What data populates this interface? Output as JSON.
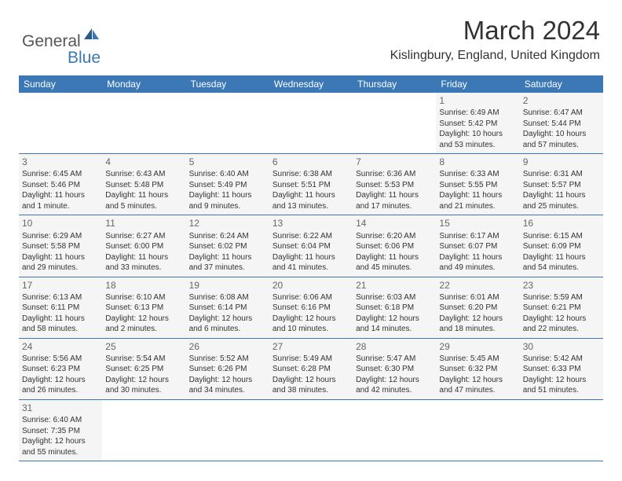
{
  "colors": {
    "header_blue": "#3b78b5",
    "cell_gray": "#f5f5f5",
    "text_main": "#333333",
    "text_muted": "#666666",
    "logo_gray": "#555555"
  },
  "logo": {
    "text_general": "General",
    "text_blue": "Blue"
  },
  "title": "March 2024",
  "location": "Kislingbury, England, United Kingdom",
  "weekdays": [
    "Sunday",
    "Monday",
    "Tuesday",
    "Wednesday",
    "Thursday",
    "Friday",
    "Saturday"
  ],
  "weeks": [
    [
      null,
      null,
      null,
      null,
      null,
      {
        "day": "1",
        "sunrise": "Sunrise: 6:49 AM",
        "sunset": "Sunset: 5:42 PM",
        "daylight": "Daylight: 10 hours and 53 minutes."
      },
      {
        "day": "2",
        "sunrise": "Sunrise: 6:47 AM",
        "sunset": "Sunset: 5:44 PM",
        "daylight": "Daylight: 10 hours and 57 minutes."
      }
    ],
    [
      {
        "day": "3",
        "sunrise": "Sunrise: 6:45 AM",
        "sunset": "Sunset: 5:46 PM",
        "daylight": "Daylight: 11 hours and 1 minute."
      },
      {
        "day": "4",
        "sunrise": "Sunrise: 6:43 AM",
        "sunset": "Sunset: 5:48 PM",
        "daylight": "Daylight: 11 hours and 5 minutes."
      },
      {
        "day": "5",
        "sunrise": "Sunrise: 6:40 AM",
        "sunset": "Sunset: 5:49 PM",
        "daylight": "Daylight: 11 hours and 9 minutes."
      },
      {
        "day": "6",
        "sunrise": "Sunrise: 6:38 AM",
        "sunset": "Sunset: 5:51 PM",
        "daylight": "Daylight: 11 hours and 13 minutes."
      },
      {
        "day": "7",
        "sunrise": "Sunrise: 6:36 AM",
        "sunset": "Sunset: 5:53 PM",
        "daylight": "Daylight: 11 hours and 17 minutes."
      },
      {
        "day": "8",
        "sunrise": "Sunrise: 6:33 AM",
        "sunset": "Sunset: 5:55 PM",
        "daylight": "Daylight: 11 hours and 21 minutes."
      },
      {
        "day": "9",
        "sunrise": "Sunrise: 6:31 AM",
        "sunset": "Sunset: 5:57 PM",
        "daylight": "Daylight: 11 hours and 25 minutes."
      }
    ],
    [
      {
        "day": "10",
        "sunrise": "Sunrise: 6:29 AM",
        "sunset": "Sunset: 5:58 PM",
        "daylight": "Daylight: 11 hours and 29 minutes."
      },
      {
        "day": "11",
        "sunrise": "Sunrise: 6:27 AM",
        "sunset": "Sunset: 6:00 PM",
        "daylight": "Daylight: 11 hours and 33 minutes."
      },
      {
        "day": "12",
        "sunrise": "Sunrise: 6:24 AM",
        "sunset": "Sunset: 6:02 PM",
        "daylight": "Daylight: 11 hours and 37 minutes."
      },
      {
        "day": "13",
        "sunrise": "Sunrise: 6:22 AM",
        "sunset": "Sunset: 6:04 PM",
        "daylight": "Daylight: 11 hours and 41 minutes."
      },
      {
        "day": "14",
        "sunrise": "Sunrise: 6:20 AM",
        "sunset": "Sunset: 6:06 PM",
        "daylight": "Daylight: 11 hours and 45 minutes."
      },
      {
        "day": "15",
        "sunrise": "Sunrise: 6:17 AM",
        "sunset": "Sunset: 6:07 PM",
        "daylight": "Daylight: 11 hours and 49 minutes."
      },
      {
        "day": "16",
        "sunrise": "Sunrise: 6:15 AM",
        "sunset": "Sunset: 6:09 PM",
        "daylight": "Daylight: 11 hours and 54 minutes."
      }
    ],
    [
      {
        "day": "17",
        "sunrise": "Sunrise: 6:13 AM",
        "sunset": "Sunset: 6:11 PM",
        "daylight": "Daylight: 11 hours and 58 minutes."
      },
      {
        "day": "18",
        "sunrise": "Sunrise: 6:10 AM",
        "sunset": "Sunset: 6:13 PM",
        "daylight": "Daylight: 12 hours and 2 minutes."
      },
      {
        "day": "19",
        "sunrise": "Sunrise: 6:08 AM",
        "sunset": "Sunset: 6:14 PM",
        "daylight": "Daylight: 12 hours and 6 minutes."
      },
      {
        "day": "20",
        "sunrise": "Sunrise: 6:06 AM",
        "sunset": "Sunset: 6:16 PM",
        "daylight": "Daylight: 12 hours and 10 minutes."
      },
      {
        "day": "21",
        "sunrise": "Sunrise: 6:03 AM",
        "sunset": "Sunset: 6:18 PM",
        "daylight": "Daylight: 12 hours and 14 minutes."
      },
      {
        "day": "22",
        "sunrise": "Sunrise: 6:01 AM",
        "sunset": "Sunset: 6:20 PM",
        "daylight": "Daylight: 12 hours and 18 minutes."
      },
      {
        "day": "23",
        "sunrise": "Sunrise: 5:59 AM",
        "sunset": "Sunset: 6:21 PM",
        "daylight": "Daylight: 12 hours and 22 minutes."
      }
    ],
    [
      {
        "day": "24",
        "sunrise": "Sunrise: 5:56 AM",
        "sunset": "Sunset: 6:23 PM",
        "daylight": "Daylight: 12 hours and 26 minutes."
      },
      {
        "day": "25",
        "sunrise": "Sunrise: 5:54 AM",
        "sunset": "Sunset: 6:25 PM",
        "daylight": "Daylight: 12 hours and 30 minutes."
      },
      {
        "day": "26",
        "sunrise": "Sunrise: 5:52 AM",
        "sunset": "Sunset: 6:26 PM",
        "daylight": "Daylight: 12 hours and 34 minutes."
      },
      {
        "day": "27",
        "sunrise": "Sunrise: 5:49 AM",
        "sunset": "Sunset: 6:28 PM",
        "daylight": "Daylight: 12 hours and 38 minutes."
      },
      {
        "day": "28",
        "sunrise": "Sunrise: 5:47 AM",
        "sunset": "Sunset: 6:30 PM",
        "daylight": "Daylight: 12 hours and 42 minutes."
      },
      {
        "day": "29",
        "sunrise": "Sunrise: 5:45 AM",
        "sunset": "Sunset: 6:32 PM",
        "daylight": "Daylight: 12 hours and 47 minutes."
      },
      {
        "day": "30",
        "sunrise": "Sunrise: 5:42 AM",
        "sunset": "Sunset: 6:33 PM",
        "daylight": "Daylight: 12 hours and 51 minutes."
      }
    ],
    [
      {
        "day": "31",
        "sunrise": "Sunrise: 6:40 AM",
        "sunset": "Sunset: 7:35 PM",
        "daylight": "Daylight: 12 hours and 55 minutes."
      },
      null,
      null,
      null,
      null,
      null,
      null
    ]
  ]
}
